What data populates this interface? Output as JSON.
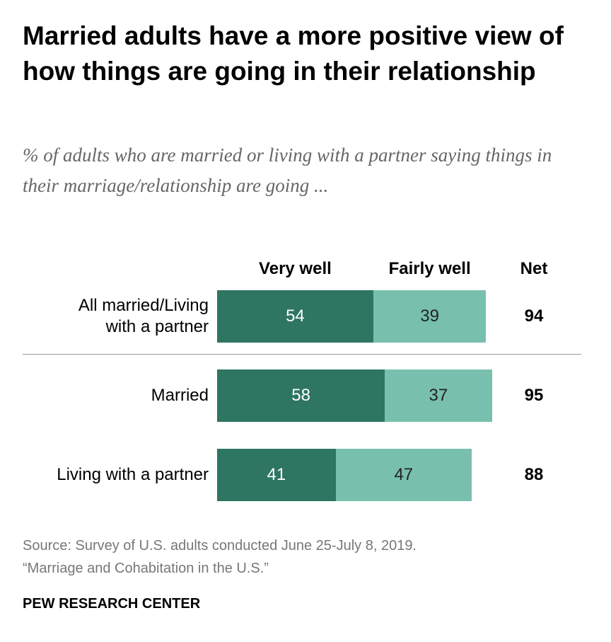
{
  "chart_data": {
    "type": "stacked-bar",
    "title": "Married adults have a more positive view of how things are going in their relationship",
    "subtitle": "% of adults who are married or living with a partner saying things in their marriage/relationship are going ...",
    "categories": [
      "All married/Living with a partner",
      "Married",
      "Living with a partner"
    ],
    "series": [
      {
        "name": "Very well",
        "color": "#2e7562",
        "values": [
          54,
          58,
          41
        ]
      },
      {
        "name": "Fairly well",
        "color": "#78c0ad",
        "values": [
          39,
          37,
          47
        ]
      }
    ],
    "net": {
      "name": "Net",
      "values": [
        94,
        95,
        88
      ]
    },
    "source": "Source: Survey of U.S. adults conducted June 25-July 8, 2019.",
    "note": "“Marriage and Cohabitation in the U.S.”",
    "brand": "PEW RESEARCH CENTER"
  }
}
